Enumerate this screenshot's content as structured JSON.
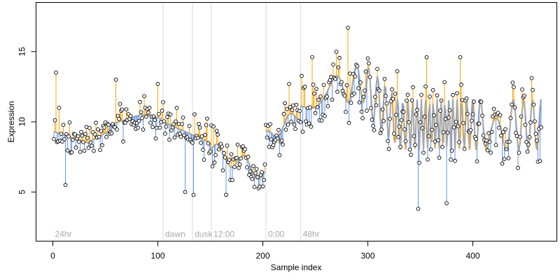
{
  "chart_data": {
    "type": "scatter",
    "title": "",
    "xlabel": "Sample index",
    "ylabel": "Expression",
    "xlim": [
      -16,
      480
    ],
    "ylim": [
      1.5,
      18.5
    ],
    "x_ticks": [
      "0",
      "100",
      "200",
      "300",
      "400"
    ],
    "y_ticks": [
      "5",
      "10",
      "15"
    ],
    "grid": false,
    "legend": "none",
    "colors": {
      "above_fit": "#ffa500",
      "below_fit": "#6495ed",
      "fitted_line": "#a9a9a9",
      "points": "#000000",
      "phase_divider": "#d9d9d9",
      "phase_label": "#a9a9a9"
    },
    "phase_markers": [
      {
        "label": "24hr",
        "x": 0
      },
      {
        "label": "dawn",
        "x": 105
      },
      {
        "label": "dusk",
        "x": 133
      },
      {
        "label": "12:00",
        "x": 151
      },
      {
        "label": "0:00",
        "x": 203
      },
      {
        "label": "48hr",
        "x": 236
      }
    ],
    "fitted_curve_segments": [
      {
        "x_start": 1,
        "x_end": 104,
        "kind": "smooth"
      },
      {
        "x_start": 105,
        "x_end": 150,
        "kind": "linear"
      },
      {
        "x_start": 151,
        "x_end": 202,
        "kind": "smooth"
      },
      {
        "x_start": 203,
        "x_end": 235,
        "kind": "smooth"
      },
      {
        "x_start": 236,
        "x_end": 465,
        "kind": "oscillating"
      }
    ],
    "approx_points_read": [
      {
        "x": 3,
        "y": 13.5
      },
      {
        "x": 6,
        "y": 11.0
      },
      {
        "x": 12,
        "y": 5.5
      },
      {
        "x": 60,
        "y": 13.0
      },
      {
        "x": 100,
        "y": 12.7
      },
      {
        "x": 126,
        "y": 5.0
      },
      {
        "x": 134,
        "y": 4.8
      },
      {
        "x": 165,
        "y": 4.8
      },
      {
        "x": 225,
        "y": 12.7
      },
      {
        "x": 247,
        "y": 14.6
      },
      {
        "x": 281,
        "y": 16.7
      },
      {
        "x": 326,
        "y": 12.0
      },
      {
        "x": 348,
        "y": 3.8
      },
      {
        "x": 356,
        "y": 14.6
      },
      {
        "x": 375,
        "y": 4.2
      },
      {
        "x": 388,
        "y": 14.6
      },
      {
        "x": 447,
        "y": 12.3
      },
      {
        "x": 464,
        "y": 7.2
      }
    ]
  }
}
